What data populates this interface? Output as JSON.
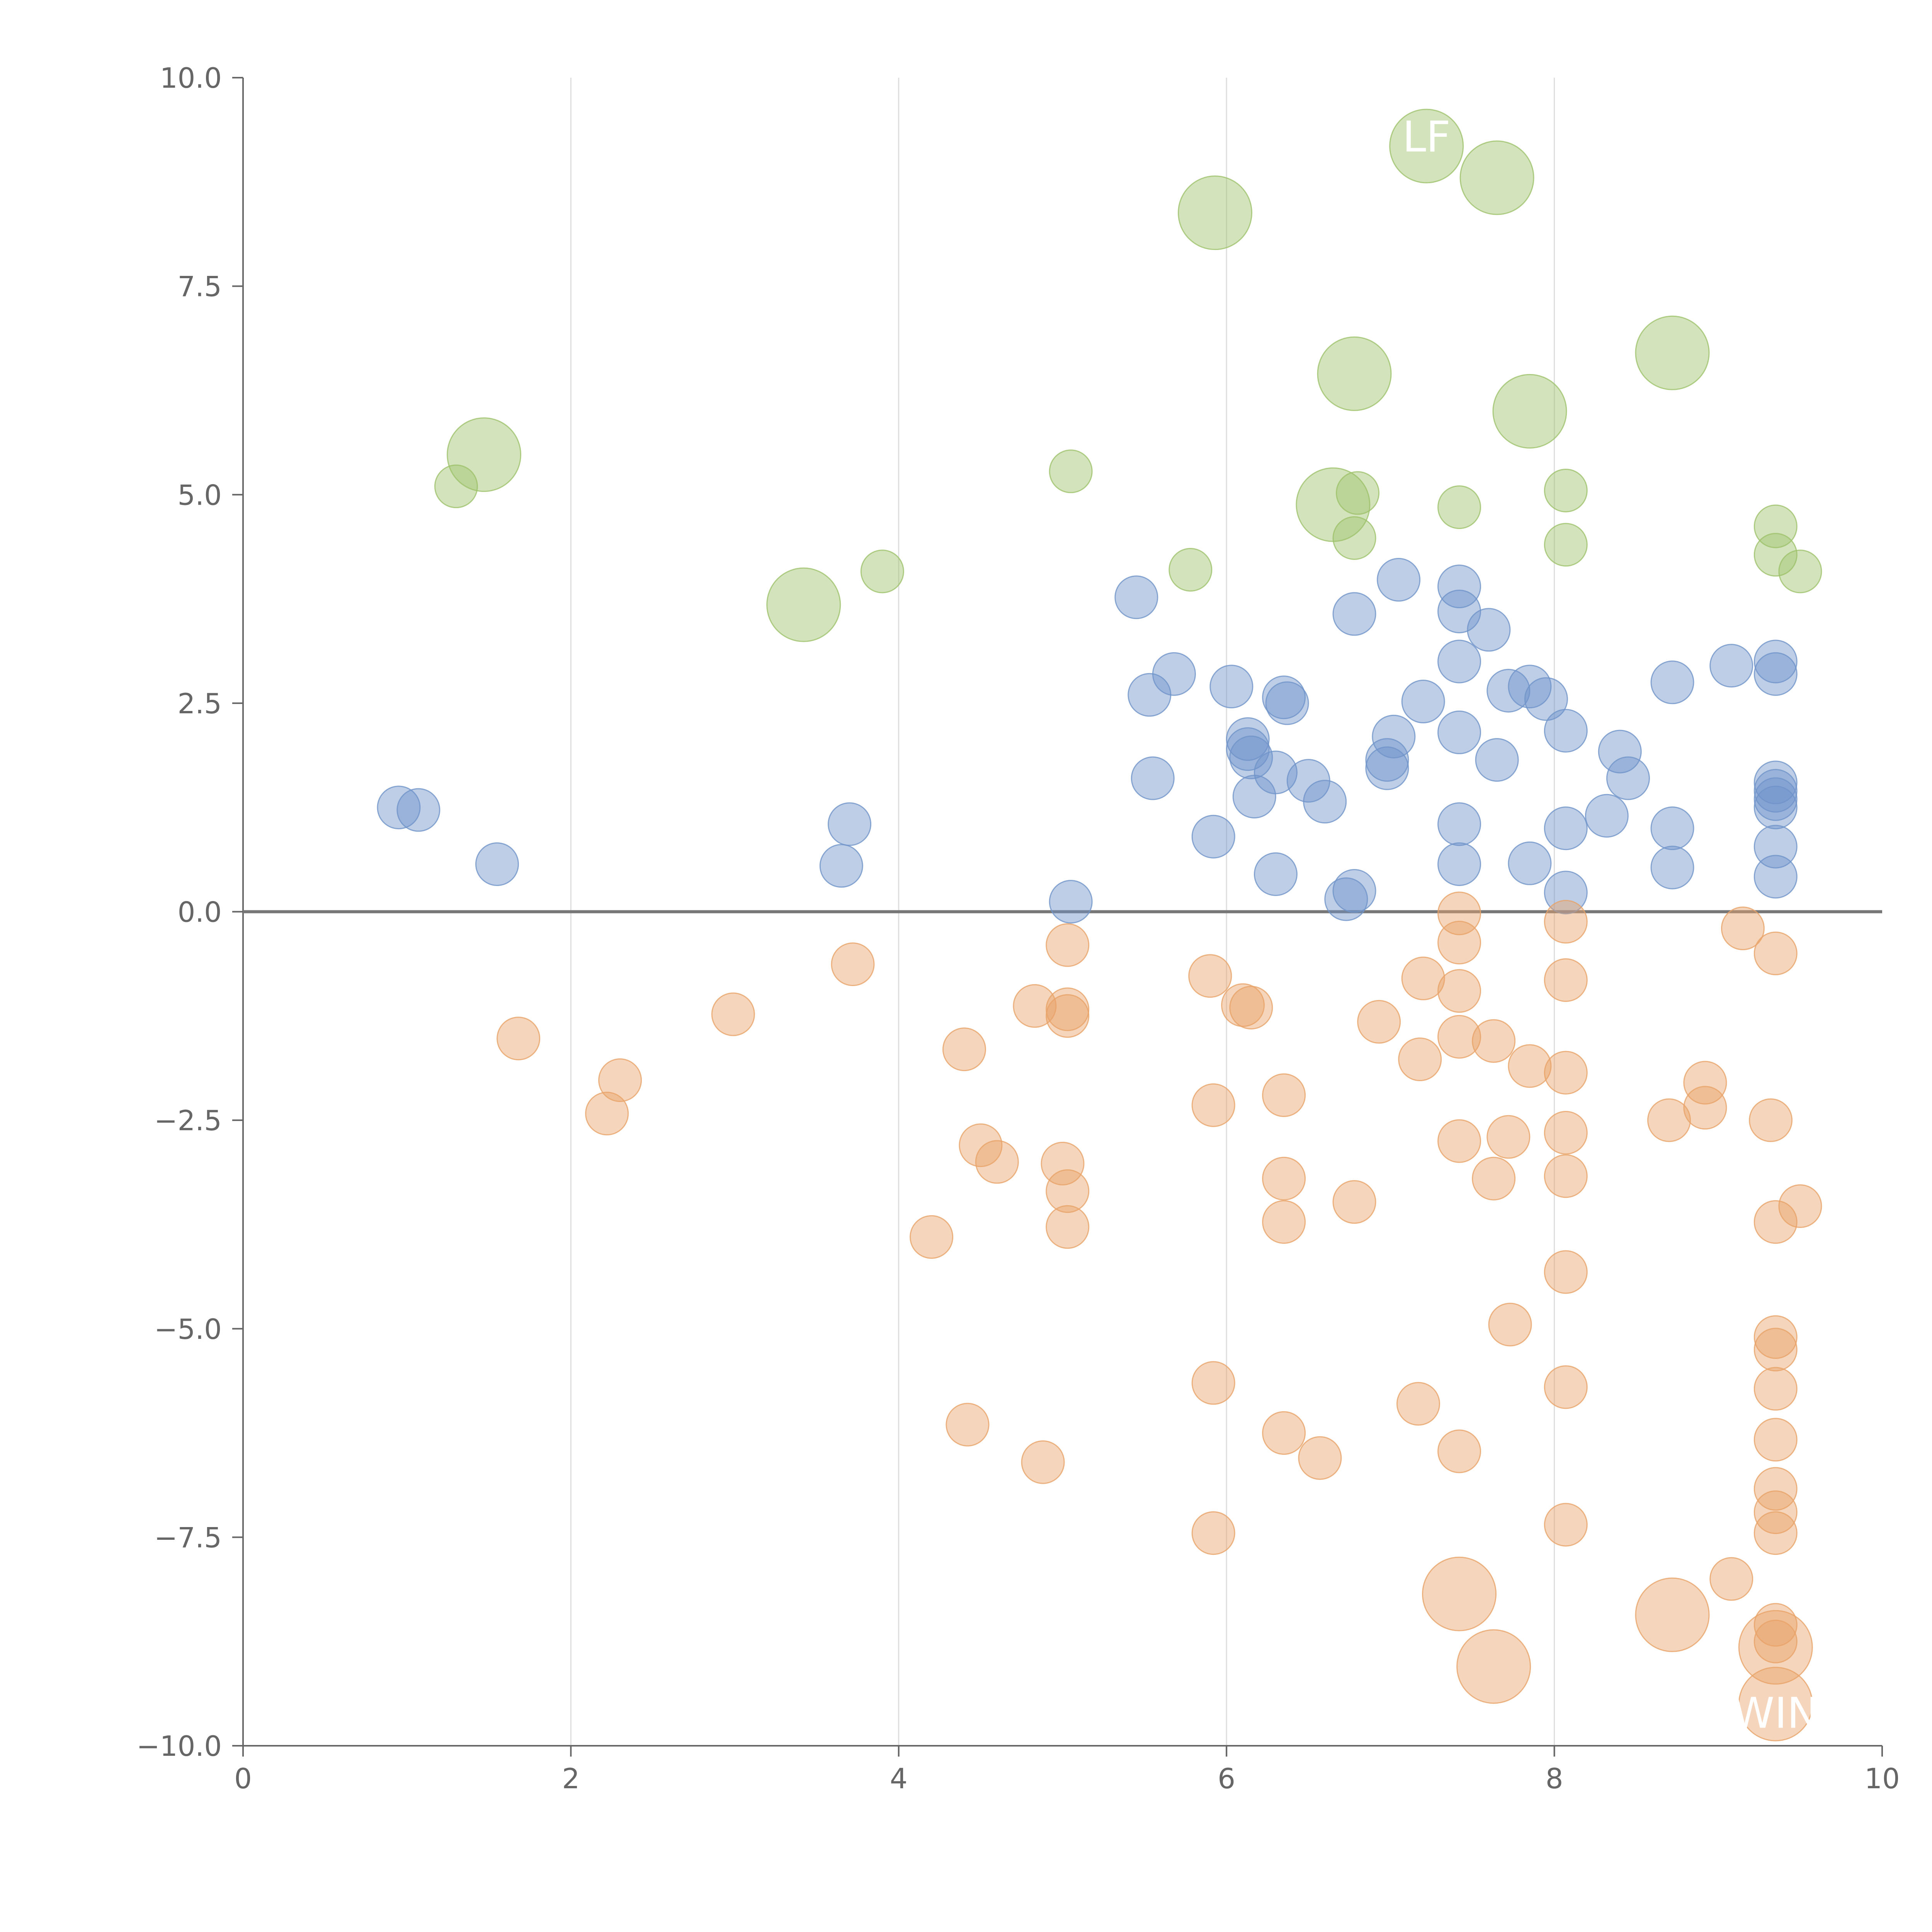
{
  "chart_data": {
    "type": "scatter",
    "title": "",
    "xlabel": "",
    "ylabel": "",
    "xlim": [
      0,
      10
    ],
    "ylim": [
      -10,
      10
    ],
    "grid": "vertical",
    "zero_line": true,
    "x_ticks": [
      "0",
      "2",
      "4",
      "6",
      "8",
      "10"
    ],
    "x_tick_values": [
      0,
      2,
      4,
      6,
      8,
      10
    ],
    "y_ticks": [
      "10.0",
      "7.5",
      "5.0",
      "2.5",
      "0.0",
      "−2.5",
      "−5.0",
      "−7.5",
      "−10.0"
    ],
    "y_tick_values": [
      10,
      7.5,
      5,
      2.5,
      0,
      -2.5,
      -5,
      -7.5,
      -10
    ],
    "series": [
      {
        "name": "green",
        "color": "#9dc26a",
        "points": [
          {
            "x": 1.3,
            "y": 5.1,
            "r": 1
          },
          {
            "x": 1.47,
            "y": 5.48,
            "r": 2
          },
          {
            "x": 3.42,
            "y": 3.68,
            "r": 2
          },
          {
            "x": 3.9,
            "y": 4.08,
            "r": 1
          },
          {
            "x": 5.05,
            "y": 5.28,
            "r": 1
          },
          {
            "x": 5.78,
            "y": 4.1,
            "r": 1
          },
          {
            "x": 5.93,
            "y": 8.38,
            "r": 2
          },
          {
            "x": 6.65,
            "y": 4.88,
            "r": 2
          },
          {
            "x": 6.78,
            "y": 6.45,
            "r": 2
          },
          {
            "x": 6.8,
            "y": 5.02,
            "r": 1
          },
          {
            "x": 6.78,
            "y": 4.48,
            "r": 1
          },
          {
            "x": 7.22,
            "y": 9.18,
            "r": 2
          },
          {
            "x": 7.42,
            "y": 4.85,
            "r": 1
          },
          {
            "x": 7.65,
            "y": 8.8,
            "r": 2
          },
          {
            "x": 7.85,
            "y": 6.0,
            "r": 2
          },
          {
            "x": 8.07,
            "y": 5.05,
            "r": 1
          },
          {
            "x": 8.07,
            "y": 4.4,
            "r": 1
          },
          {
            "x": 8.72,
            "y": 6.7,
            "r": 2
          },
          {
            "x": 9.35,
            "y": 4.62,
            "r": 1
          },
          {
            "x": 9.35,
            "y": 4.28,
            "r": 1
          },
          {
            "x": 9.5,
            "y": 4.08,
            "r": 1
          }
        ]
      },
      {
        "name": "blue",
        "color": "#6f93c9",
        "points": [
          {
            "x": 0.95,
            "y": 1.25,
            "r": 1
          },
          {
            "x": 1.07,
            "y": 1.22,
            "r": 1
          },
          {
            "x": 1.55,
            "y": 0.57,
            "r": 1
          },
          {
            "x": 3.65,
            "y": 0.55,
            "r": 1
          },
          {
            "x": 3.7,
            "y": 1.05,
            "r": 1
          },
          {
            "x": 5.05,
            "y": 0.12,
            "r": 1
          },
          {
            "x": 5.45,
            "y": 3.77,
            "r": 1
          },
          {
            "x": 5.53,
            "y": 2.6,
            "r": 1
          },
          {
            "x": 5.55,
            "y": 1.6,
            "r": 1
          },
          {
            "x": 5.68,
            "y": 2.85,
            "r": 1
          },
          {
            "x": 5.92,
            "y": 0.9,
            "r": 1
          },
          {
            "x": 6.03,
            "y": 2.7,
            "r": 1
          },
          {
            "x": 6.13,
            "y": 2.07,
            "r": 1
          },
          {
            "x": 6.13,
            "y": 1.95,
            "r": 1
          },
          {
            "x": 6.15,
            "y": 1.85,
            "r": 1
          },
          {
            "x": 6.17,
            "y": 1.38,
            "r": 1
          },
          {
            "x": 6.3,
            "y": 1.67,
            "r": 1
          },
          {
            "x": 6.3,
            "y": 0.45,
            "r": 1
          },
          {
            "x": 6.35,
            "y": 2.57,
            "r": 1
          },
          {
            "x": 6.37,
            "y": 2.5,
            "r": 1
          },
          {
            "x": 6.5,
            "y": 1.57,
            "r": 1
          },
          {
            "x": 6.6,
            "y": 1.32,
            "r": 1
          },
          {
            "x": 6.73,
            "y": 0.15,
            "r": 1
          },
          {
            "x": 6.78,
            "y": 0.25,
            "r": 1
          },
          {
            "x": 6.78,
            "y": 3.57,
            "r": 1
          },
          {
            "x": 6.98,
            "y": 1.82,
            "r": 1
          },
          {
            "x": 6.98,
            "y": 1.72,
            "r": 1
          },
          {
            "x": 7.02,
            "y": 2.1,
            "r": 1
          },
          {
            "x": 7.05,
            "y": 3.98,
            "r": 1
          },
          {
            "x": 7.2,
            "y": 2.52,
            "r": 1
          },
          {
            "x": 7.42,
            "y": 3.9,
            "r": 1
          },
          {
            "x": 7.42,
            "y": 3.6,
            "r": 1
          },
          {
            "x": 7.42,
            "y": 3.0,
            "r": 1
          },
          {
            "x": 7.42,
            "y": 2.15,
            "r": 1
          },
          {
            "x": 7.42,
            "y": 1.05,
            "r": 1
          },
          {
            "x": 7.42,
            "y": 0.57,
            "r": 1
          },
          {
            "x": 7.6,
            "y": 3.38,
            "r": 1
          },
          {
            "x": 7.65,
            "y": 1.82,
            "r": 1
          },
          {
            "x": 7.72,
            "y": 2.65,
            "r": 1
          },
          {
            "x": 7.85,
            "y": 2.7,
            "r": 1
          },
          {
            "x": 7.85,
            "y": 0.58,
            "r": 1
          },
          {
            "x": 7.95,
            "y": 2.55,
            "r": 1
          },
          {
            "x": 8.07,
            "y": 2.17,
            "r": 1
          },
          {
            "x": 8.07,
            "y": 1.0,
            "r": 1
          },
          {
            "x": 8.07,
            "y": 0.23,
            "r": 1
          },
          {
            "x": 8.32,
            "y": 1.15,
            "r": 1
          },
          {
            "x": 8.4,
            "y": 1.92,
            "r": 1
          },
          {
            "x": 8.45,
            "y": 1.6,
            "r": 1
          },
          {
            "x": 8.72,
            "y": 2.75,
            "r": 1
          },
          {
            "x": 8.72,
            "y": 1.0,
            "r": 1
          },
          {
            "x": 8.72,
            "y": 0.53,
            "r": 1
          },
          {
            "x": 9.08,
            "y": 2.95,
            "r": 1
          },
          {
            "x": 9.35,
            "y": 3.0,
            "r": 1
          },
          {
            "x": 9.35,
            "y": 2.85,
            "r": 1
          },
          {
            "x": 9.35,
            "y": 1.55,
            "r": 1
          },
          {
            "x": 9.35,
            "y": 1.45,
            "r": 1
          },
          {
            "x": 9.35,
            "y": 1.35,
            "r": 1
          },
          {
            "x": 9.35,
            "y": 1.25,
            "r": 1
          },
          {
            "x": 9.35,
            "y": 0.78,
            "r": 1
          },
          {
            "x": 9.35,
            "y": 0.42,
            "r": 1
          }
        ]
      },
      {
        "name": "orange",
        "color": "#e8a268",
        "points": [
          {
            "x": 1.68,
            "y": -1.52,
            "r": 1
          },
          {
            "x": 2.22,
            "y": -2.42,
            "r": 1
          },
          {
            "x": 2.3,
            "y": -2.02,
            "r": 1
          },
          {
            "x": 2.99,
            "y": -1.23,
            "r": 1
          },
          {
            "x": 3.72,
            "y": -0.63,
            "r": 1
          },
          {
            "x": 4.2,
            "y": -3.9,
            "r": 1
          },
          {
            "x": 4.4,
            "y": -1.65,
            "r": 1
          },
          {
            "x": 4.42,
            "y": -6.15,
            "r": 1
          },
          {
            "x": 4.5,
            "y": -2.8,
            "r": 1
          },
          {
            "x": 4.6,
            "y": -3.0,
            "r": 1
          },
          {
            "x": 4.83,
            "y": -1.13,
            "r": 1
          },
          {
            "x": 4.88,
            "y": -6.6,
            "r": 1
          },
          {
            "x": 5.0,
            "y": -3.02,
            "r": 1
          },
          {
            "x": 5.03,
            "y": -1.17,
            "r": 1
          },
          {
            "x": 5.03,
            "y": -1.25,
            "r": 1
          },
          {
            "x": 5.03,
            "y": -3.35,
            "r": 1
          },
          {
            "x": 5.03,
            "y": -3.78,
            "r": 1
          },
          {
            "x": 5.03,
            "y": -0.4,
            "r": 1
          },
          {
            "x": 5.9,
            "y": -0.77,
            "r": 1
          },
          {
            "x": 5.92,
            "y": -2.32,
            "r": 1
          },
          {
            "x": 5.92,
            "y": -5.65,
            "r": 1
          },
          {
            "x": 5.92,
            "y": -7.45,
            "r": 1
          },
          {
            "x": 6.1,
            "y": -1.12,
            "r": 1
          },
          {
            "x": 6.15,
            "y": -1.15,
            "r": 1
          },
          {
            "x": 6.35,
            "y": -2.2,
            "r": 1
          },
          {
            "x": 6.35,
            "y": -3.2,
            "r": 1
          },
          {
            "x": 6.35,
            "y": -3.72,
            "r": 1
          },
          {
            "x": 6.35,
            "y": -6.25,
            "r": 1
          },
          {
            "x": 6.57,
            "y": -6.55,
            "r": 1
          },
          {
            "x": 6.78,
            "y": -3.48,
            "r": 1
          },
          {
            "x": 6.93,
            "y": -1.32,
            "r": 1
          },
          {
            "x": 7.18,
            "y": -1.77,
            "r": 1
          },
          {
            "x": 7.2,
            "y": -0.8,
            "r": 1
          },
          {
            "x": 7.17,
            "y": -5.9,
            "r": 1
          },
          {
            "x": 7.42,
            "y": -0.02,
            "r": 1
          },
          {
            "x": 7.42,
            "y": -0.37,
            "r": 1
          },
          {
            "x": 7.42,
            "y": -0.95,
            "r": 1
          },
          {
            "x": 7.42,
            "y": -1.5,
            "r": 1
          },
          {
            "x": 7.42,
            "y": -2.75,
            "r": 1
          },
          {
            "x": 7.42,
            "y": -6.47,
            "r": 1
          },
          {
            "x": 7.42,
            "y": -8.18,
            "r": 2
          },
          {
            "x": 7.63,
            "y": -1.55,
            "r": 1
          },
          {
            "x": 7.63,
            "y": -3.2,
            "r": 1
          },
          {
            "x": 7.63,
            "y": -9.05,
            "r": 2
          },
          {
            "x": 7.72,
            "y": -2.7,
            "r": 1
          },
          {
            "x": 7.73,
            "y": -4.95,
            "r": 1
          },
          {
            "x": 7.85,
            "y": -1.85,
            "r": 1
          },
          {
            "x": 8.07,
            "y": -0.12,
            "r": 1
          },
          {
            "x": 8.07,
            "y": -0.82,
            "r": 1
          },
          {
            "x": 8.07,
            "y": -1.93,
            "r": 1
          },
          {
            "x": 8.07,
            "y": -2.65,
            "r": 1
          },
          {
            "x": 8.07,
            "y": -3.17,
            "r": 1
          },
          {
            "x": 8.07,
            "y": -4.32,
            "r": 1
          },
          {
            "x": 8.07,
            "y": -5.7,
            "r": 1
          },
          {
            "x": 8.07,
            "y": -7.35,
            "r": 1
          },
          {
            "x": 8.7,
            "y": -2.5,
            "r": 1
          },
          {
            "x": 8.72,
            "y": -8.43,
            "r": 2
          },
          {
            "x": 8.92,
            "y": -2.05,
            "r": 1
          },
          {
            "x": 8.92,
            "y": -2.35,
            "r": 1
          },
          {
            "x": 9.08,
            "y": -8.0,
            "r": 1
          },
          {
            "x": 9.15,
            "y": -0.2,
            "r": 1
          },
          {
            "x": 9.32,
            "y": -2.5,
            "r": 1
          },
          {
            "x": 9.35,
            "y": -0.5,
            "r": 1
          },
          {
            "x": 9.35,
            "y": -3.72,
            "r": 1
          },
          {
            "x": 9.35,
            "y": -5.1,
            "r": 1
          },
          {
            "x": 9.35,
            "y": -5.25,
            "r": 1
          },
          {
            "x": 9.35,
            "y": -5.72,
            "r": 1
          },
          {
            "x": 9.35,
            "y": -6.33,
            "r": 1
          },
          {
            "x": 9.35,
            "y": -6.92,
            "r": 1
          },
          {
            "x": 9.35,
            "y": -7.2,
            "r": 1
          },
          {
            "x": 9.35,
            "y": -7.45,
            "r": 1
          },
          {
            "x": 9.35,
            "y": -8.55,
            "r": 1
          },
          {
            "x": 9.35,
            "y": -8.75,
            "r": 1
          },
          {
            "x": 9.35,
            "y": -8.82,
            "r": 2
          },
          {
            "x": 9.35,
            "y": -9.5,
            "r": 2
          },
          {
            "x": 9.5,
            "y": -3.53,
            "r": 1
          }
        ]
      }
    ],
    "annotations": [
      {
        "text": "LF",
        "x": 7.22,
        "y": 9.3
      },
      {
        "text": "WIN",
        "x": 9.35,
        "y": -9.6
      }
    ]
  }
}
